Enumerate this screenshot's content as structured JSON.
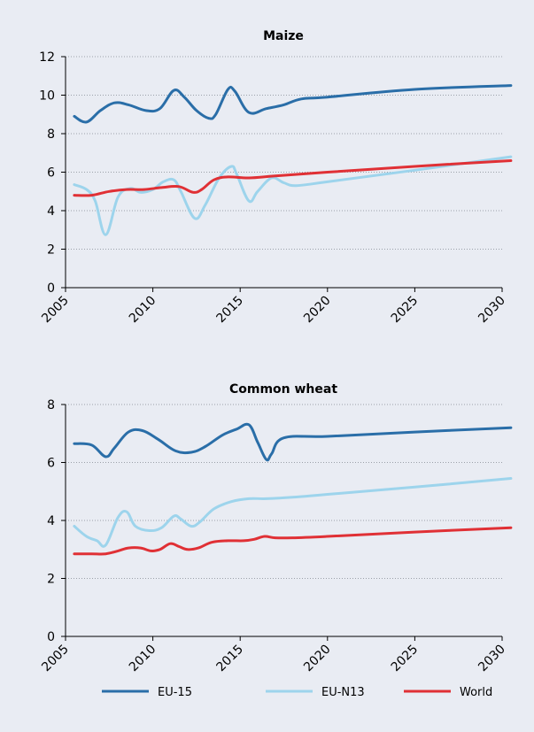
{
  "colors": {
    "background": "#e9ecf3",
    "eu15": "#2a6ea8",
    "eun13": "#9dd4ec",
    "world": "#e03035",
    "grid": "#9aa0a8",
    "axis": "#000000"
  },
  "legend": {
    "placement": "bottom"
  },
  "chart_data": [
    {
      "type": "line",
      "title": "Maize",
      "xlabel": "",
      "ylabel": "",
      "xlim": [
        2005,
        2030
      ],
      "ylim": [
        0,
        12
      ],
      "xticks": [
        2005,
        2010,
        2015,
        2020,
        2025,
        2030
      ],
      "yticks": [
        0,
        2,
        4,
        6,
        8,
        10,
        12
      ],
      "grid": true,
      "series": [
        {
          "name": "EU-15",
          "color": "#2a6ea8",
          "points": [
            [
              2005.5,
              8.9
            ],
            [
              2006.2,
              8.6
            ],
            [
              2007,
              9.2
            ],
            [
              2007.8,
              9.6
            ],
            [
              2008.6,
              9.5
            ],
            [
              2009.6,
              9.2
            ],
            [
              2010.4,
              9.3
            ],
            [
              2011.2,
              10.25
            ],
            [
              2011.8,
              9.9
            ],
            [
              2012.5,
              9.2
            ],
            [
              2013.2,
              8.8
            ],
            [
              2013.6,
              9.0
            ],
            [
              2014.3,
              10.3
            ],
            [
              2014.7,
              10.2
            ],
            [
              2015.5,
              9.1
            ],
            [
              2016.5,
              9.3
            ],
            [
              2017.5,
              9.5
            ],
            [
              2018.5,
              9.8
            ],
            [
              2020,
              9.9
            ],
            [
              2025,
              10.3
            ],
            [
              2030.5,
              10.5
            ]
          ]
        },
        {
          "name": "EU-N13",
          "color": "#9dd4ec",
          "points": [
            [
              2005.5,
              5.35
            ],
            [
              2006.2,
              5.1
            ],
            [
              2006.7,
              4.5
            ],
            [
              2007.3,
              2.75
            ],
            [
              2008,
              4.7
            ],
            [
              2008.7,
              5.15
            ],
            [
              2009.3,
              4.95
            ],
            [
              2010,
              5.1
            ],
            [
              2010.6,
              5.5
            ],
            [
              2011.2,
              5.6
            ],
            [
              2011.6,
              5.0
            ],
            [
              2012.4,
              3.6
            ],
            [
              2013,
              4.3
            ],
            [
              2013.8,
              5.7
            ],
            [
              2014.5,
              6.3
            ],
            [
              2014.8,
              5.9
            ],
            [
              2015.5,
              4.5
            ],
            [
              2016,
              5.0
            ],
            [
              2016.8,
              5.7
            ],
            [
              2017.5,
              5.45
            ],
            [
              2018.2,
              5.3
            ],
            [
              2020,
              5.5
            ],
            [
              2025,
              6.1
            ],
            [
              2030.5,
              6.8
            ]
          ]
        },
        {
          "name": "World",
          "color": "#e03035",
          "points": [
            [
              2005.5,
              4.8
            ],
            [
              2006.5,
              4.8
            ],
            [
              2007.5,
              5.0
            ],
            [
              2008.5,
              5.1
            ],
            [
              2009.5,
              5.1
            ],
            [
              2010.5,
              5.2
            ],
            [
              2011.5,
              5.25
            ],
            [
              2012.3,
              4.95
            ],
            [
              2012.8,
              5.1
            ],
            [
              2013.5,
              5.6
            ],
            [
              2014.3,
              5.75
            ],
            [
              2015.5,
              5.7
            ],
            [
              2017,
              5.8
            ],
            [
              2020,
              6.0
            ],
            [
              2025,
              6.3
            ],
            [
              2030.5,
              6.6
            ]
          ]
        }
      ]
    },
    {
      "type": "line",
      "title": "Common wheat",
      "xlabel": "",
      "ylabel": "",
      "xlim": [
        2005,
        2030
      ],
      "ylim": [
        0,
        8
      ],
      "xticks": [
        2005,
        2010,
        2015,
        2020,
        2025,
        2030
      ],
      "yticks": [
        0,
        2,
        4,
        6,
        8
      ],
      "grid": true,
      "series": [
        {
          "name": "EU-15",
          "color": "#2a6ea8",
          "points": [
            [
              2005.5,
              6.65
            ],
            [
              2006.5,
              6.6
            ],
            [
              2007.3,
              6.2
            ],
            [
              2007.8,
              6.5
            ],
            [
              2008.6,
              7.05
            ],
            [
              2009.4,
              7.1
            ],
            [
              2010.3,
              6.8
            ],
            [
              2011.3,
              6.4
            ],
            [
              2012.2,
              6.35
            ],
            [
              2013,
              6.55
            ],
            [
              2014,
              6.95
            ],
            [
              2014.8,
              7.15
            ],
            [
              2015.5,
              7.3
            ],
            [
              2016,
              6.7
            ],
            [
              2016.5,
              6.1
            ],
            [
              2016.8,
              6.3
            ],
            [
              2017.5,
              6.85
            ],
            [
              2020,
              6.9
            ],
            [
              2025,
              7.05
            ],
            [
              2030.5,
              7.2
            ]
          ]
        },
        {
          "name": "EU-N13",
          "color": "#9dd4ec",
          "points": [
            [
              2005.5,
              3.8
            ],
            [
              2006.2,
              3.45
            ],
            [
              2006.8,
              3.3
            ],
            [
              2007.3,
              3.15
            ],
            [
              2008,
              4.1
            ],
            [
              2008.5,
              4.3
            ],
            [
              2009,
              3.8
            ],
            [
              2009.8,
              3.65
            ],
            [
              2010.5,
              3.75
            ],
            [
              2011.2,
              4.15
            ],
            [
              2011.6,
              4.05
            ],
            [
              2012.2,
              3.8
            ],
            [
              2012.7,
              3.95
            ],
            [
              2013.5,
              4.4
            ],
            [
              2014.5,
              4.65
            ],
            [
              2015.5,
              4.75
            ],
            [
              2016.5,
              4.75
            ],
            [
              2018,
              4.8
            ],
            [
              2020,
              4.9
            ],
            [
              2025,
              5.15
            ],
            [
              2030.5,
              5.45
            ]
          ]
        },
        {
          "name": "World",
          "color": "#e03035",
          "points": [
            [
              2005.5,
              2.85
            ],
            [
              2006.5,
              2.85
            ],
            [
              2007.3,
              2.85
            ],
            [
              2008,
              2.95
            ],
            [
              2008.6,
              3.05
            ],
            [
              2009.3,
              3.05
            ],
            [
              2009.9,
              2.95
            ],
            [
              2010.4,
              3.0
            ],
            [
              2011,
              3.2
            ],
            [
              2011.5,
              3.1
            ],
            [
              2012,
              3.0
            ],
            [
              2012.6,
              3.05
            ],
            [
              2013.4,
              3.25
            ],
            [
              2014.3,
              3.3
            ],
            [
              2015.2,
              3.3
            ],
            [
              2015.8,
              3.35
            ],
            [
              2016.4,
              3.45
            ],
            [
              2017,
              3.4
            ],
            [
              2018,
              3.4
            ],
            [
              2020,
              3.45
            ],
            [
              2025,
              3.6
            ],
            [
              2030.5,
              3.75
            ]
          ]
        }
      ]
    }
  ]
}
